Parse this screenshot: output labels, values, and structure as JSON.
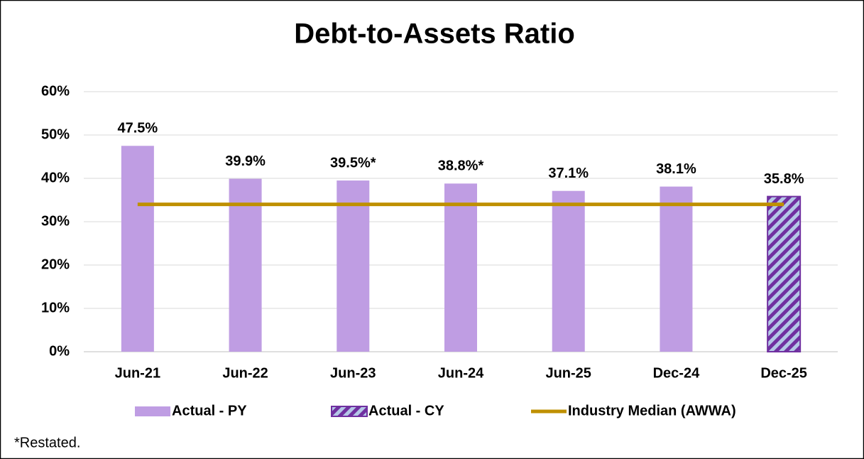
{
  "chart_data": {
    "type": "bar",
    "title": "Debt-to-Assets Ratio",
    "categories": [
      "Jun-21",
      "Jun-22",
      "Jun-23",
      "Jun-24",
      "Jun-25",
      "Dec-24",
      "Dec-25"
    ],
    "series": [
      {
        "name": "Actual - PY",
        "color": "#bf9de3",
        "type": "bar",
        "values": [
          47.5,
          39.9,
          39.5,
          38.8,
          37.1,
          38.1,
          null
        ],
        "value_labels": [
          "47.5%",
          "39.9%",
          "39.5%*",
          "38.8%*",
          "37.1%",
          "38.1%",
          null
        ]
      },
      {
        "name": "Actual - CY",
        "color": "#7030a0",
        "type": "bar",
        "pattern": "hatched",
        "values": [
          null,
          null,
          null,
          null,
          null,
          null,
          35.8
        ],
        "value_labels": [
          null,
          null,
          null,
          null,
          null,
          null,
          "35.8%"
        ]
      },
      {
        "name": "Industry Median (AWWA)",
        "color": "#bf9000",
        "type": "line",
        "values": [
          34,
          34,
          34,
          34,
          34,
          34,
          34
        ]
      }
    ],
    "ylim": [
      0,
      60
    ],
    "yticks": [
      {
        "value": 0,
        "label": "0%"
      },
      {
        "value": 10,
        "label": "10%"
      },
      {
        "value": 20,
        "label": "20%"
      },
      {
        "value": 30,
        "label": "30%"
      },
      {
        "value": 40,
        "label": "40%"
      },
      {
        "value": 50,
        "label": "50%"
      },
      {
        "value": 60,
        "label": "60%"
      }
    ],
    "grid": true,
    "legend": "bottom",
    "footnote": "*Restated."
  }
}
